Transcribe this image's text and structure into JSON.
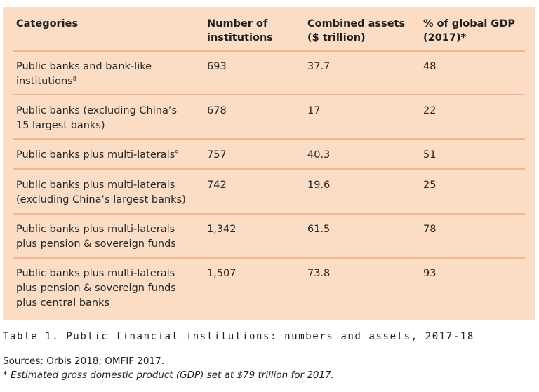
{
  "table": {
    "headers": [
      "Categories",
      "Number of\ninstitutions",
      "Combined assets\n($ trillion)",
      "% of global GDP\n(2017)*"
    ],
    "rows": [
      {
        "category": "Public banks and bank-like\ninstitutions",
        "footnote": "8",
        "institutions": "693",
        "assets": "37.7",
        "gdp_pct": "48"
      },
      {
        "category": "Public banks (excluding China’s\n15 largest banks)",
        "footnote": "",
        "institutions": "678",
        "assets": "17",
        "gdp_pct": "22"
      },
      {
        "category": "Public banks plus multi-laterals",
        "footnote": "9",
        "institutions": "757",
        "assets": "40.3",
        "gdp_pct": "51"
      },
      {
        "category": "Public banks plus multi-laterals\n(excluding China’s largest banks)",
        "footnote": "",
        "institutions": "742",
        "assets": "19.6",
        "gdp_pct": "25"
      },
      {
        "category": "Public banks plus multi-laterals\nplus pension & sovereign funds",
        "footnote": "",
        "institutions": "1,342",
        "assets": "61.5",
        "gdp_pct": "78"
      },
      {
        "category": "Public banks plus multi-laterals\nplus pension & sovereign funds\nplus central banks",
        "footnote": "",
        "institutions": "1,507",
        "assets": "73.8",
        "gdp_pct": "93"
      }
    ]
  },
  "caption": "Table 1. Public financial institutions: numbers and assets, 2017-18",
  "sources": "Sources: Orbis 2018; OMFIF 2017.",
  "note": "* Estimated gross domestic product (GDP) set at $79 trillion for 2017.",
  "colors": {
    "table_background": "#fbdcc4",
    "row_rule": "#f2b58e",
    "text": "#222222"
  }
}
